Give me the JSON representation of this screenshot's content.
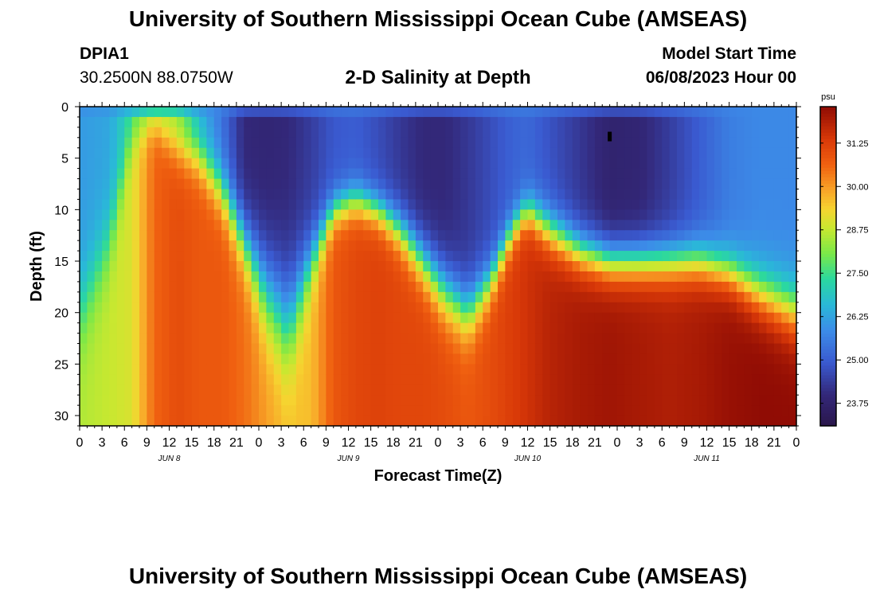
{
  "header": {
    "title": "University of Southern Mississippi Ocean Cube (AMSEAS)",
    "station_id": "DPIA1",
    "station_coords": "30.2500N  88.0750W",
    "plot_title": "2-D Salinity at Depth",
    "model_start_label": "Model Start Time",
    "model_start_value": "06/08/2023 Hour 00"
  },
  "footer": {
    "title": "University of Southern Mississippi Ocean Cube (AMSEAS)"
  },
  "colors": {
    "background": "#ffffff",
    "axis": "#000000"
  },
  "chart_data": {
    "type": "heatmap",
    "title": "2-D Salinity at Depth",
    "xlabel": "Forecast Time(Z)",
    "ylabel": "Depth (ft)",
    "x_hours_range": [
      0,
      96
    ],
    "x_tick_step_hours": 3,
    "x_tick_labels": [
      "0",
      "3",
      "6",
      "9",
      "12",
      "15",
      "18",
      "21",
      "0",
      "3",
      "6",
      "9",
      "12",
      "15",
      "18",
      "21",
      "0",
      "3",
      "6",
      "9",
      "12",
      "15",
      "18",
      "21",
      "0",
      "3",
      "6",
      "9",
      "12",
      "15",
      "18",
      "21",
      "0"
    ],
    "date_labels": [
      {
        "label": "JUN 8",
        "hour": 12
      },
      {
        "label": "JUN 9",
        "hour": 36
      },
      {
        "label": "JUN 10",
        "hour": 60
      },
      {
        "label": "JUN 11",
        "hour": 84
      }
    ],
    "ylim": [
      0,
      31
    ],
    "y_ticks": [
      0,
      5,
      10,
      15,
      20,
      25,
      30
    ],
    "y_inverted": true,
    "colorbar": {
      "unit": "psu",
      "range": [
        23.1,
        32.3
      ],
      "ticks": [
        23.75,
        25.0,
        26.25,
        27.5,
        28.75,
        30.0,
        31.25
      ],
      "tick_labels": [
        "23.75",
        "25.00",
        "26.25",
        "27.50",
        "28.75",
        "30.00",
        "31.25"
      ]
    },
    "surface_salinity_psu": 25.8,
    "profiles": [
      {
        "hour": 0,
        "top": 26.1,
        "bottom": 28.6,
        "thermocline_ft": 20,
        "width_ft": 6
      },
      {
        "hour": 4,
        "top": 26.3,
        "bottom": 28.8,
        "thermocline_ft": 13,
        "width_ft": 5
      },
      {
        "hour": 7,
        "top": 27.4,
        "bottom": 29.0,
        "thermocline_ft": 3,
        "width_ft": 3
      },
      {
        "hour": 10,
        "top": 28.6,
        "bottom": 30.6,
        "thermocline_ft": 2,
        "width_ft": 2
      },
      {
        "hour": 13,
        "top": 28.3,
        "bottom": 31.0,
        "thermocline_ft": 4,
        "width_ft": 3
      },
      {
        "hour": 16,
        "top": 26.6,
        "bottom": 30.8,
        "thermocline_ft": 5,
        "width_ft": 3
      },
      {
        "hour": 19,
        "top": 25.4,
        "bottom": 30.8,
        "thermocline_ft": 8,
        "width_ft": 3.5
      },
      {
        "hour": 22,
        "top": 24.0,
        "bottom": 30.5,
        "thermocline_ft": 13,
        "width_ft": 4
      },
      {
        "hour": 25,
        "top": 23.9,
        "bottom": 30.0,
        "thermocline_ft": 18,
        "width_ft": 6
      },
      {
        "hour": 28,
        "top": 24.0,
        "bottom": 29.6,
        "thermocline_ft": 21,
        "width_ft": 7
      },
      {
        "hour": 31,
        "top": 24.4,
        "bottom": 29.6,
        "thermocline_ft": 15,
        "width_ft": 4
      },
      {
        "hour": 34,
        "top": 24.9,
        "bottom": 30.8,
        "thermocline_ft": 10,
        "width_ft": 2.5
      },
      {
        "hour": 37,
        "top": 25.0,
        "bottom": 31.1,
        "thermocline_ft": 9,
        "width_ft": 2.5
      },
      {
        "hour": 40,
        "top": 24.7,
        "bottom": 31.2,
        "thermocline_ft": 10,
        "width_ft": 2.5
      },
      {
        "hour": 43,
        "top": 24.3,
        "bottom": 31.1,
        "thermocline_ft": 12,
        "width_ft": 3
      },
      {
        "hour": 46,
        "top": 24.0,
        "bottom": 31.1,
        "thermocline_ft": 15,
        "width_ft": 3.5
      },
      {
        "hour": 49,
        "top": 24.0,
        "bottom": 31.0,
        "thermocline_ft": 18,
        "width_ft": 4
      },
      {
        "hour": 52,
        "top": 24.3,
        "bottom": 30.8,
        "thermocline_ft": 20,
        "width_ft": 4
      },
      {
        "hour": 55,
        "top": 24.7,
        "bottom": 31.0,
        "thermocline_ft": 17,
        "width_ft": 3
      },
      {
        "hour": 58,
        "top": 25.1,
        "bottom": 31.3,
        "thermocline_ft": 12,
        "width_ft": 2.5
      },
      {
        "hour": 60,
        "top": 25.2,
        "bottom": 31.5,
        "thermocline_ft": 10,
        "width_ft": 2.5
      },
      {
        "hour": 63,
        "top": 24.8,
        "bottom": 31.8,
        "thermocline_ft": 12,
        "width_ft": 3
      },
      {
        "hour": 67,
        "top": 24.3,
        "bottom": 32.0,
        "thermocline_ft": 14,
        "width_ft": 3
      },
      {
        "hour": 71,
        "top": 23.8,
        "bottom": 32.1,
        "thermocline_ft": 15,
        "width_ft": 3
      },
      {
        "hour": 75,
        "top": 23.9,
        "bottom": 32.0,
        "thermocline_ft": 15,
        "width_ft": 3
      },
      {
        "hour": 79,
        "top": 24.4,
        "bottom": 31.9,
        "thermocline_ft": 15,
        "width_ft": 3
      },
      {
        "hour": 83,
        "top": 25.0,
        "bottom": 32.0,
        "thermocline_ft": 15,
        "width_ft": 3
      },
      {
        "hour": 87,
        "top": 25.6,
        "bottom": 32.2,
        "thermocline_ft": 16,
        "width_ft": 3
      },
      {
        "hour": 91,
        "top": 25.8,
        "bottom": 32.3,
        "thermocline_ft": 18,
        "width_ft": 3.5
      },
      {
        "hour": 96,
        "top": 25.8,
        "bottom": 32.3,
        "thermocline_ft": 20,
        "width_ft": 4
      }
    ],
    "marker": {
      "hour": 71,
      "depth_ft": 2.9
    }
  }
}
